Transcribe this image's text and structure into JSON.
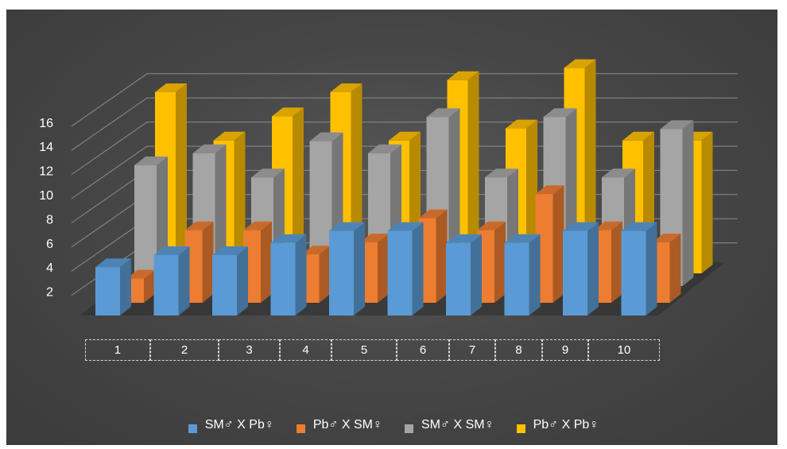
{
  "chart_data": {
    "type": "bar",
    "subtype": "3d-column",
    "categories": [
      "1",
      "2",
      "3",
      "4",
      "5",
      "6",
      "7",
      "8",
      "9",
      "10"
    ],
    "series": [
      {
        "name": "SM♂ X Pb♀",
        "color": "#5b9bd5",
        "values": [
          4,
          5,
          5,
          6,
          7,
          7,
          6,
          6,
          7,
          7
        ]
      },
      {
        "name": "Pb♂ X SM♀",
        "color": "#ed7d31",
        "values": [
          2,
          6,
          6,
          4,
          5,
          7,
          6,
          9,
          6,
          5
        ]
      },
      {
        "name": "SM♂ X SM♀",
        "color": "#a5a5a5",
        "values": [
          10,
          11,
          9,
          12,
          11,
          14,
          9,
          14,
          9,
          13
        ]
      },
      {
        "name": "Pb♂ X Pb♀",
        "color": "#ffc000",
        "values": [
          15,
          11,
          13,
          15,
          11,
          16,
          12,
          17,
          11,
          11
        ]
      }
    ],
    "y_ticks": [
      "2",
      "4",
      "6",
      "8",
      "10",
      "12",
      "14",
      "16"
    ],
    "ylim": [
      0,
      17
    ],
    "grid": true,
    "legend_position": "bottom",
    "title": "",
    "xlabel": "",
    "ylabel": ""
  }
}
